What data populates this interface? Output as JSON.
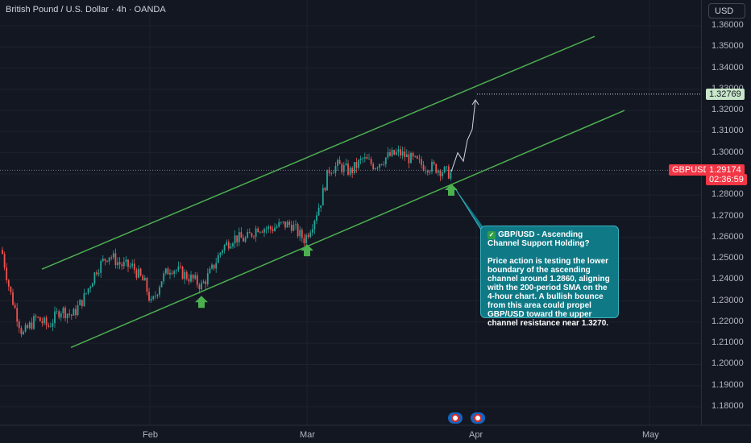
{
  "header": {
    "title": "British Pound / U.S. Dollar · 4h · OANDA"
  },
  "price_axis": {
    "currency_button": "USD",
    "ticks": [
      "1.36000",
      "1.35000",
      "1.34000",
      "1.33000",
      "1.32000",
      "1.31000",
      "1.30000",
      "1.29000",
      "1.28000",
      "1.27000",
      "1.26000",
      "1.25000",
      "1.24000",
      "1.23000",
      "1.22000",
      "1.21000",
      "1.20000",
      "1.19000",
      "1.18000"
    ],
    "target_tag": "1.32769",
    "symbol_tag": "GBPUSD",
    "current_price_tag": "1.29174",
    "countdown_tag": "02:36:59"
  },
  "time_axis": {
    "labels": [
      "Feb",
      "Mar",
      "Apr",
      "May"
    ]
  },
  "callout": {
    "title": "GBP/USD - Ascending Channel Support Holding?",
    "body": "Price action is testing the lower boundary of the ascending channel around 1.2860, aligning with the 200-period SMA on the 4-hour chart. A bullish bounce from this area could propel GBP/USD toward the upper channel resistance near 1.3270."
  },
  "colors": {
    "background": "#131722",
    "up_candle": "#26a69a",
    "down_candle": "#ef5350",
    "channel": "#4caf50",
    "arrow": "#4caf50",
    "callout_bg": "#0f7a86",
    "price_tag": "#f23645"
  },
  "icons": {
    "signal_arrow": "up-arrow-icon",
    "event_flags": "us-flag-icon"
  },
  "chart_data": {
    "type": "candlestick",
    "symbol": "GBPUSD",
    "timeframe": "4h",
    "ylim": [
      1.175,
      1.365
    ],
    "x_labels": [
      "Feb",
      "Mar",
      "Apr",
      "May"
    ],
    "current_price": 1.29174,
    "target_price": 1.32769,
    "series": [
      {
        "name": "close_path",
        "points": [
          [
            0,
            1.258
          ],
          [
            12,
            1.235
          ],
          [
            28,
            1.214
          ],
          [
            45,
            1.222
          ],
          [
            60,
            1.218
          ],
          [
            75,
            1.226
          ],
          [
            90,
            1.223
          ],
          [
            105,
            1.232
          ],
          [
            120,
            1.245
          ],
          [
            135,
            1.252
          ],
          [
            150,
            1.247
          ],
          [
            165,
            1.246
          ],
          [
            180,
            1.238
          ],
          [
            188,
            1.228
          ],
          [
            200,
            1.24
          ],
          [
            212,
            1.246
          ],
          [
            226,
            1.243
          ],
          [
            240,
            1.24
          ],
          [
            250,
            1.237
          ],
          [
            262,
            1.244
          ],
          [
            276,
            1.255
          ],
          [
            290,
            1.26
          ],
          [
            305,
            1.259
          ],
          [
            320,
            1.265
          ],
          [
            335,
            1.264
          ],
          [
            350,
            1.266
          ],
          [
            362,
            1.266
          ],
          [
            370,
            1.262
          ],
          [
            378,
            1.259
          ],
          [
            388,
            1.267
          ],
          [
            398,
            1.277
          ],
          [
            408,
            1.292
          ],
          [
            420,
            1.294
          ],
          [
            435,
            1.291
          ],
          [
            450,
            1.297
          ],
          [
            465,
            1.294
          ],
          [
            480,
            1.298
          ],
          [
            495,
            1.3
          ],
          [
            510,
            1.297
          ],
          [
            525,
            1.294
          ],
          [
            540,
            1.293
          ],
          [
            552,
            1.291
          ],
          [
            560,
            1.29
          ]
        ]
      },
      {
        "name": "projection",
        "points": [
          [
            560,
            1.291
          ],
          [
            568,
            1.3
          ],
          [
            575,
            1.296
          ],
          [
            580,
            1.306
          ],
          [
            586,
            1.311
          ],
          [
            590,
            1.325
          ]
        ]
      }
    ],
    "channel": {
      "upper": [
        [
          52,
          1.245
        ],
        [
          738,
          1.355
        ]
      ],
      "lower": [
        [
          88,
          1.208
        ],
        [
          775,
          1.32
        ]
      ]
    },
    "signals": [
      {
        "x": 250,
        "type": "up-arrow"
      },
      {
        "x": 381,
        "type": "up-arrow"
      },
      {
        "x": 560,
        "type": "up-arrow"
      }
    ]
  }
}
